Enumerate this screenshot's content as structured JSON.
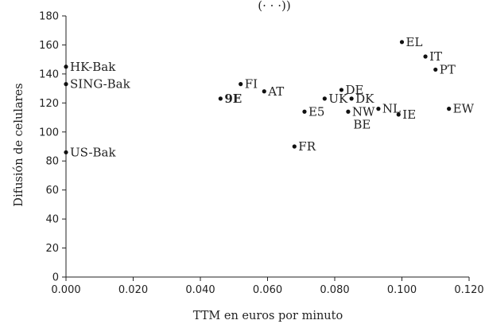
{
  "chart_data": {
    "type": "scatter",
    "title": "",
    "title_fragment": "(· · ·))",
    "xlabel": "TTM en euros por minuto",
    "ylabel": "Difusión de celulares",
    "xlim": [
      0,
      0.12
    ],
    "ylim": [
      0,
      180
    ],
    "x_ticks": [
      0.0,
      0.02,
      0.04,
      0.06,
      0.08,
      0.1,
      0.12
    ],
    "x_tick_labels": [
      "0.000",
      "0.020",
      "0.040",
      "0.060",
      "0.080",
      "0.100",
      "0.120"
    ],
    "y_ticks": [
      0,
      20,
      40,
      60,
      80,
      100,
      120,
      140,
      160,
      180
    ],
    "y_tick_labels": [
      "0",
      "20",
      "40",
      "60",
      "80",
      "100",
      "120",
      "140",
      "160",
      "180"
    ],
    "grid": false,
    "legend": "none",
    "points": [
      {
        "label": "HK-Bak",
        "x": 0.0,
        "y": 145,
        "bold": false
      },
      {
        "label": "SING-Bak",
        "x": 0.0,
        "y": 133,
        "bold": false
      },
      {
        "label": "US-Bak",
        "x": 0.0,
        "y": 86,
        "bold": false
      },
      {
        "label": "9E",
        "x": 0.046,
        "y": 123,
        "bold": true
      },
      {
        "label": "FI",
        "x": 0.052,
        "y": 133,
        "bold": false
      },
      {
        "label": "AT",
        "x": 0.059,
        "y": 128,
        "bold": false
      },
      {
        "label": "E5",
        "x": 0.071,
        "y": 114,
        "bold": false
      },
      {
        "label": "FR",
        "x": 0.068,
        "y": 90,
        "bold": false
      },
      {
        "label": "UK",
        "x": 0.077,
        "y": 123,
        "bold": false
      },
      {
        "label": "DE",
        "x": 0.082,
        "y": 129,
        "bold": false
      },
      {
        "label": "DK",
        "x": 0.085,
        "y": 123,
        "bold": false
      },
      {
        "label": "NW",
        "x": 0.084,
        "y": 114,
        "bold": false
      },
      {
        "label": "NL",
        "x": 0.093,
        "y": 116,
        "bold": false
      },
      {
        "label": "IE",
        "x": 0.099,
        "y": 112,
        "bold": false
      },
      {
        "label": "EL",
        "x": 0.1,
        "y": 162,
        "bold": false
      },
      {
        "label": "IT",
        "x": 0.107,
        "y": 152,
        "bold": false
      },
      {
        "label": "PT",
        "x": 0.11,
        "y": 143,
        "bold": false
      },
      {
        "label": "EW",
        "x": 0.114,
        "y": 116,
        "bold": false
      }
    ],
    "annotations": [
      {
        "text": "BE",
        "x": 0.086,
        "y": 105
      }
    ]
  }
}
